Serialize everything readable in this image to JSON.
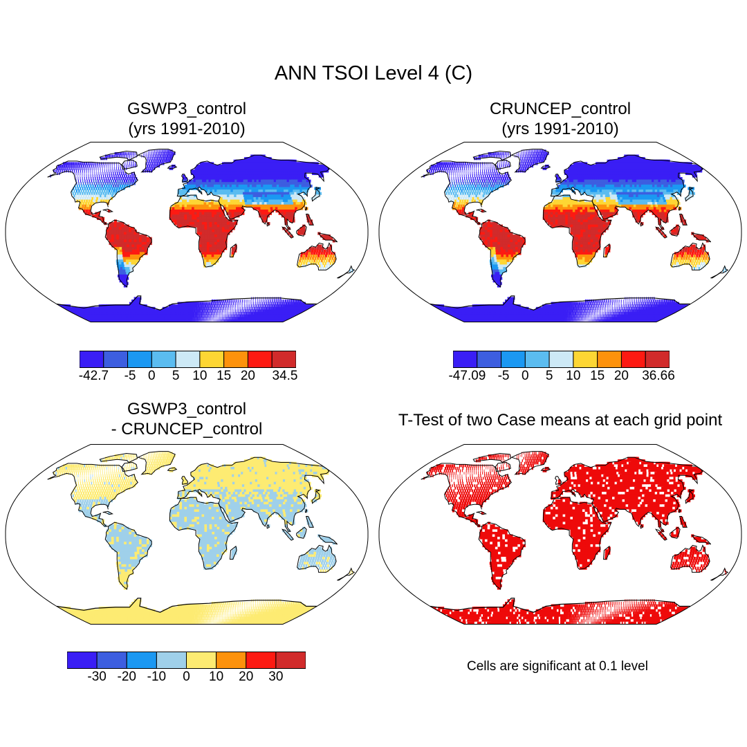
{
  "main_title": "ANN TSOI Level 4 (C)",
  "panels": [
    {
      "id": "gswp3",
      "title_line1": "GSWP3_control",
      "title_line2": "(yrs 1991-2010)",
      "fill": "absolute"
    },
    {
      "id": "cruncep",
      "title_line1": "CRUNCEP_control",
      "title_line2": "(yrs 1991-2010)",
      "fill": "absolute"
    },
    {
      "id": "difference",
      "title_line1": "GSWP3_control",
      "title_line2": "- CRUNCEP_control",
      "fill": "difference"
    },
    {
      "id": "ttest",
      "title_line1": "T-Test of two Case means at each grid point",
      "title_line2": "",
      "fill": "significance"
    }
  ],
  "colorbars": {
    "gswp3": {
      "colors": [
        "#3a1ef5",
        "#3d5ee0",
        "#1b98f2",
        "#5bbcf0",
        "#cde9f6",
        "#fdd634",
        "#fd920c",
        "#fd1a12",
        "#d12b2b"
      ],
      "labels": [
        "-42.7",
        "-5",
        "0",
        "5",
        "10",
        "15",
        "20",
        "34.5"
      ]
    },
    "cruncep": {
      "colors": [
        "#3a1ef5",
        "#3d5ee0",
        "#1b98f2",
        "#5bbcf0",
        "#cde9f6",
        "#fdd634",
        "#fd920c",
        "#fd1a12",
        "#d12b2b"
      ],
      "labels": [
        "-47.09",
        "-5",
        "0",
        "5",
        "10",
        "15",
        "20",
        "36.66"
      ]
    },
    "difference": {
      "colors": [
        "#3a1ef5",
        "#3d5ee0",
        "#1b98f2",
        "#9fd0ea",
        "#fdeb72",
        "#fd920c",
        "#fd1a12",
        "#d12b2b"
      ],
      "labels": [
        "-30",
        "-20",
        "-10",
        "0",
        "10",
        "20",
        "30"
      ]
    }
  },
  "ttest_note": "Cells are significant at 0.1 level",
  "palette": {
    "ocean": "#ffffff",
    "coast": "#000000",
    "significant": "#ee0a0a"
  }
}
